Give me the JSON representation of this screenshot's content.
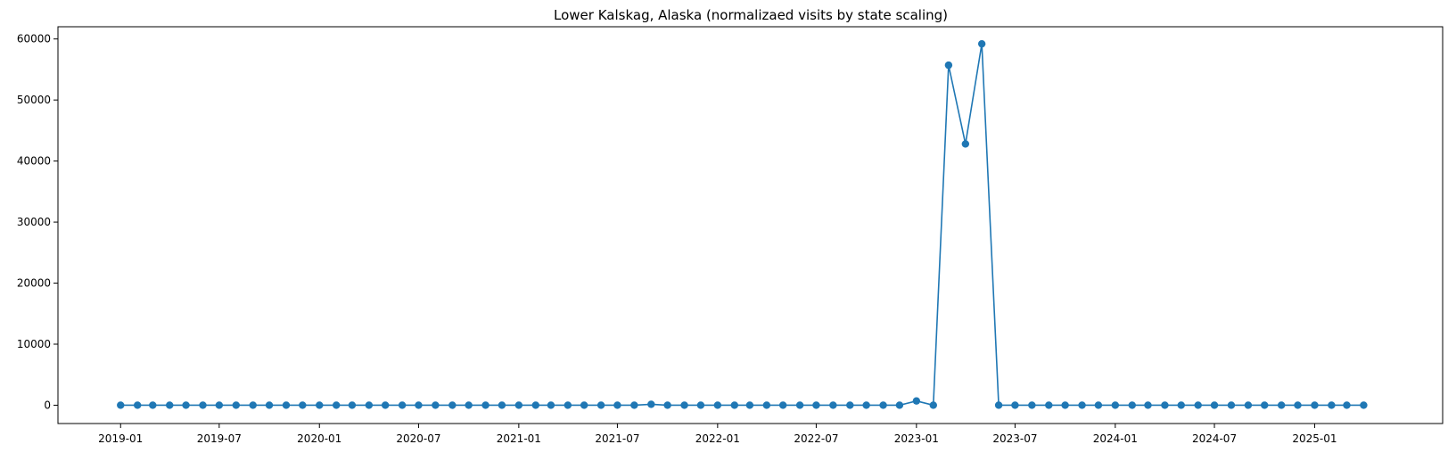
{
  "chart_data": {
    "type": "line",
    "title": "Lower Kalskag, Alaska (normalizaed visits by state scaling)",
    "xlabel": "",
    "ylabel": "",
    "x_start": "2019-01",
    "x_end": "2025-04",
    "x_ticks": [
      "2019-01",
      "2019-07",
      "2020-01",
      "2020-07",
      "2021-01",
      "2021-07",
      "2022-01",
      "2022-07",
      "2023-01",
      "2023-07",
      "2024-01",
      "2024-07",
      "2025-01"
    ],
    "y_ticks": [
      0,
      10000,
      20000,
      30000,
      40000,
      50000,
      60000
    ],
    "ylim": [
      -3000,
      62000
    ],
    "xlim": [
      "2018-09-08",
      "2025-08-24"
    ],
    "grid": false,
    "color": "#1f77b4",
    "series": [
      {
        "values": [
          0,
          0,
          0,
          0,
          0,
          0,
          0,
          0,
          0,
          0,
          0,
          0,
          0,
          0,
          0,
          0,
          0,
          0,
          0,
          0,
          0,
          0,
          0,
          0,
          0,
          0,
          0,
          0,
          0,
          0,
          0,
          0,
          150,
          0,
          0,
          0,
          0,
          0,
          0,
          0,
          0,
          0,
          0,
          0,
          0,
          0,
          0,
          0,
          700,
          0,
          55700,
          42800,
          59200,
          0,
          0,
          0,
          0,
          0,
          0,
          0,
          0,
          0,
          0,
          0,
          0,
          0,
          0,
          0,
          0,
          0,
          0,
          0,
          0,
          0,
          0,
          0
        ]
      }
    ]
  }
}
